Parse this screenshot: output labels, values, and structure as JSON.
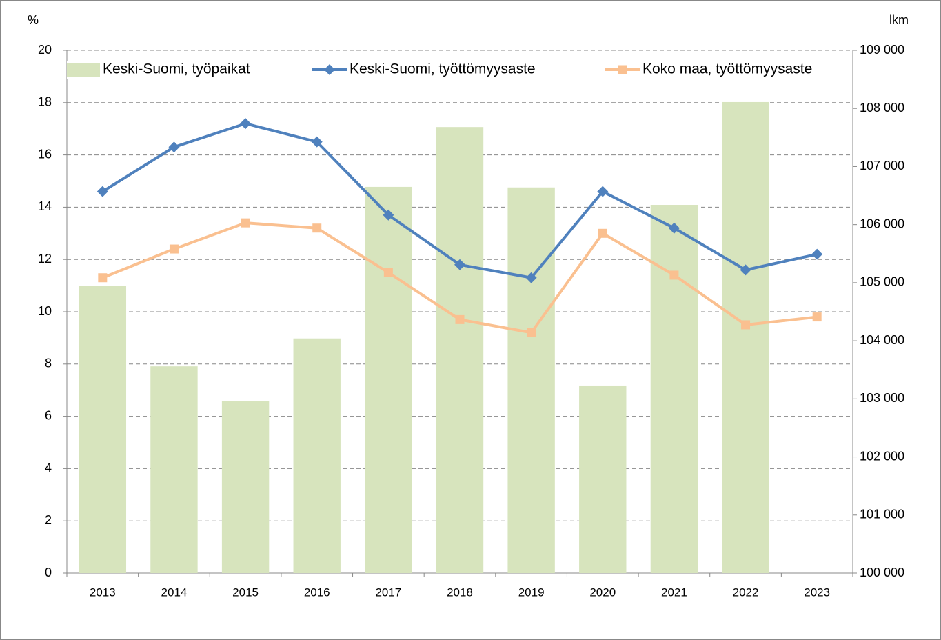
{
  "chart_data": {
    "type": "bar-line",
    "y_label": "%",
    "y2_label": "lkm",
    "categories": [
      "2013",
      "2014",
      "2015",
      "2016",
      "2017",
      "2018",
      "2019",
      "2020",
      "2021",
      "2022",
      "2023"
    ],
    "series": [
      {
        "name": "Keski-Suomi, työpaikat",
        "kind": "bar",
        "axis": "y2",
        "color": "#d7e4bd",
        "values": [
          104950,
          103560,
          102960,
          104040,
          106650,
          107680,
          106640,
          103230,
          106340,
          108110,
          null
        ]
      },
      {
        "name": "Keski-Suomi, työttömyysaste",
        "kind": "line",
        "marker": "diamond",
        "color": "#4f81bd",
        "values": [
          14.6,
          16.3,
          17.2,
          16.5,
          13.7,
          11.8,
          11.3,
          14.6,
          13.2,
          11.6,
          12.2
        ]
      },
      {
        "name": "Koko maa, työttömyysaste",
        "kind": "line",
        "marker": "square",
        "color": "#fac090",
        "values": [
          11.3,
          12.4,
          13.4,
          13.2,
          11.5,
          9.7,
          9.2,
          13.0,
          11.4,
          9.5,
          9.8
        ]
      }
    ],
    "ylim": [
      0,
      20
    ],
    "yticks": [
      0,
      2,
      4,
      6,
      8,
      10,
      12,
      14,
      16,
      18,
      20
    ],
    "y2lim": [
      100000,
      109000
    ],
    "y2ticks": [
      {
        "value": 100000,
        "label": "100 000"
      },
      {
        "value": 101000,
        "label": "101 000"
      },
      {
        "value": 102000,
        "label": "102 000"
      },
      {
        "value": 103000,
        "label": "103 000"
      },
      {
        "value": 104000,
        "label": "104 000"
      },
      {
        "value": 105000,
        "label": "105 000"
      },
      {
        "value": 106000,
        "label": "106 000"
      },
      {
        "value": 107000,
        "label": "107 000"
      },
      {
        "value": 108000,
        "label": "108 000"
      },
      {
        "value": 109000,
        "label": "109 000"
      }
    ],
    "grid": true,
    "legend": "top"
  }
}
